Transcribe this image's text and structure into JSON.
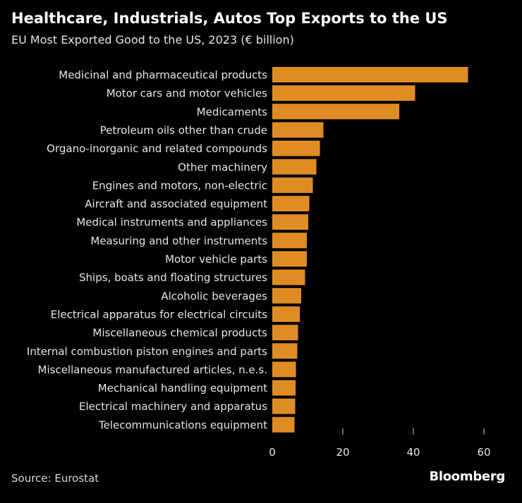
{
  "header": {
    "title": "Healthcare, Industrials, Autos Top Exports to the US",
    "subtitle": "EU Most Exported Good to the US, 2023 (€ billion)"
  },
  "footer": {
    "source": "Source: Eurostat",
    "brand": "Bloomberg"
  },
  "colors": {
    "bar": "#E08C24",
    "text": "#E6E6E6",
    "background": "#000000"
  },
  "chart_data": {
    "type": "bar",
    "orientation": "horizontal",
    "title": "Healthcare, Industrials, Autos Top Exports to the US",
    "subtitle": "EU Most Exported Good to the US, 2023 (€ billion)",
    "xlabel": "",
    "ylabel": "",
    "xlim": [
      0,
      60
    ],
    "xticks": [
      0,
      20,
      40,
      60
    ],
    "grid": false,
    "categories": [
      "Medicinal and pharmaceutical products",
      "Motor cars and motor vehicles",
      "Medicaments",
      "Petroleum oils other than crude",
      "Organo-inorganic and related compounds",
      "Other machinery",
      "Engines and motors, non-electric",
      "Aircraft and associated equipment",
      "Medical instruments and appliances",
      "Measuring and other instruments",
      "Motor vehicle parts",
      "Ships, boats and floating structures",
      "Alcoholic beverages",
      "Electrical apparatus for electrical circuits",
      "Miscellaneous chemical products",
      "Internal combustion piston engines and parts",
      "Miscellaneous manufactured articles, n.e.s.",
      "Mechanical handling equipment",
      "Electrical machinery and apparatus",
      "Telecommunications equipment"
    ],
    "values": [
      55.5,
      40.5,
      36.0,
      14.5,
      13.5,
      12.5,
      11.5,
      10.5,
      10.2,
      9.8,
      9.8,
      9.3,
      8.2,
      7.8,
      7.3,
      7.1,
      6.7,
      6.6,
      6.5,
      6.3
    ]
  }
}
